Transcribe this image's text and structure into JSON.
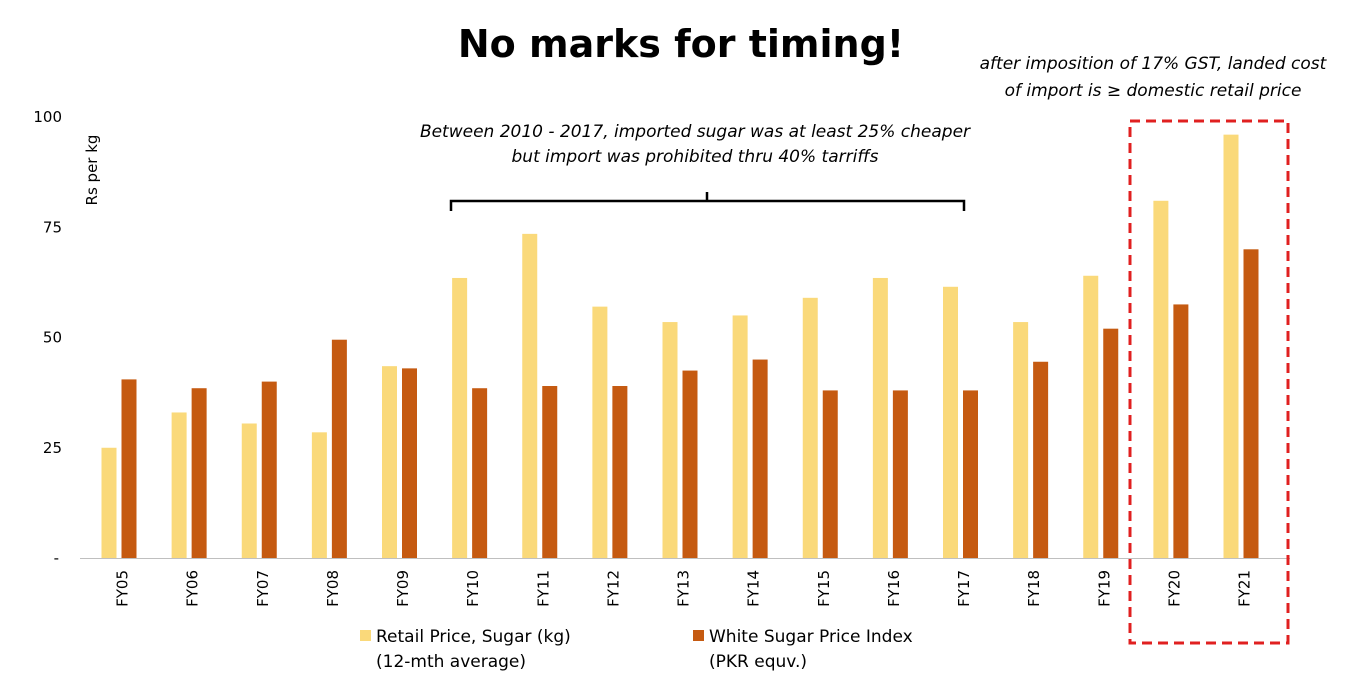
{
  "chart_data": {
    "type": "bar",
    "title": "No marks for timing!",
    "ylabel": "Rs per kg",
    "xlabel": "",
    "ylim": [
      0,
      100
    ],
    "yticks": [
      {
        "value": 0,
        "label": "-"
      },
      {
        "value": 25,
        "label": "25"
      },
      {
        "value": 50,
        "label": "50"
      },
      {
        "value": 75,
        "label": "75"
      },
      {
        "value": 100,
        "label": "100"
      }
    ],
    "categories": [
      "FY05",
      "FY06",
      "FY07",
      "FY08",
      "FY09",
      "FY10",
      "FY11",
      "FY12",
      "FY13",
      "FY14",
      "FY15",
      "FY16",
      "FY17",
      "FY18",
      "FY19",
      "FY20",
      "FY21"
    ],
    "series": [
      {
        "name": "Retail Price, Sugar (kg)",
        "name_line2": "(12-mth average)",
        "color": "#FAD97A",
        "values": [
          25,
          33,
          30.5,
          28.5,
          43.5,
          63.5,
          73.5,
          57,
          53.5,
          55,
          59,
          63.5,
          61.5,
          53.5,
          64,
          81,
          96
        ]
      },
      {
        "name": "White Sugar Price Index",
        "name_line2": "(PKR equv.)",
        "color": "#C55A11",
        "values": [
          40.5,
          38.5,
          40,
          49.5,
          43,
          38.5,
          39,
          39,
          42.5,
          45,
          38,
          38,
          38,
          44.5,
          52,
          57.5,
          70
        ]
      }
    ],
    "grid": false,
    "legend_position": "bottom",
    "annotations": [
      {
        "id": "bracket",
        "lines": [
          "Between 2010 - 2017, imported sugar was at least 25% cheaper",
          "but import was prohibited thru 40% tarriffs"
        ],
        "from_category": "FY10",
        "to_category": "FY17"
      },
      {
        "id": "highlight",
        "lines": [
          "after imposition of 17% GST, landed cost",
          "of import is ≥ domestic retail price"
        ],
        "categories": [
          "FY20",
          "FY21"
        ],
        "box_color": "#E02020"
      }
    ]
  }
}
